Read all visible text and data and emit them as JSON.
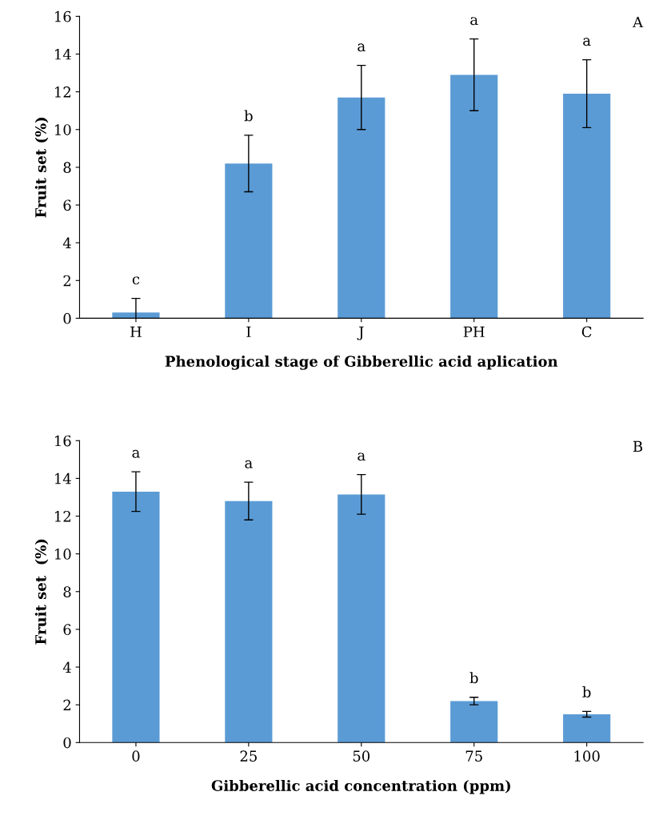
{
  "chart_data": [
    {
      "type": "bar",
      "xlabel": "Phenological stage of Gibberellic acid aplication",
      "ylabel": "Fruit set (%)",
      "categories": [
        "H",
        "I",
        "J",
        "PH",
        "C"
      ],
      "values": [
        0.3,
        8.2,
        11.7,
        12.9,
        11.9
      ],
      "errors": [
        0.75,
        1.5,
        1.7,
        1.9,
        1.8
      ],
      "color": "#5b9bd5",
      "ylim": [
        0,
        16
      ],
      "yticks": [
        0,
        2,
        4,
        6,
        8,
        10,
        12,
        14,
        16
      ],
      "grid": false,
      "annotations": [
        {
          "text": "c",
          "x": "H",
          "y": 1.05
        },
        {
          "text": "b",
          "x": "I",
          "y": 9.7
        },
        {
          "text": "a",
          "x": "J",
          "y": 13.4
        },
        {
          "text": "a",
          "x": "PH",
          "y": 14.8
        },
        {
          "text": "a",
          "x": "C",
          "y": 13.7
        },
        "A"
      ]
    },
    {
      "type": "bar",
      "xlabel": "Gibberellic acid concentration (ppm)",
      "ylabel": "Fruit set  (%)",
      "categories": [
        "0",
        "25",
        "50",
        "75",
        "100"
      ],
      "values": [
        13.3,
        12.8,
        13.15,
        2.2,
        1.5
      ],
      "errors": [
        1.05,
        1.0,
        1.05,
        0.2,
        0.15
      ],
      "color": "#5b9bd5",
      "ylim": [
        0,
        16
      ],
      "yticks": [
        0,
        2,
        4,
        6,
        8,
        10,
        12,
        14,
        16
      ],
      "grid": false,
      "annotations": [
        {
          "text": "a",
          "x": "0",
          "y": 14.35
        },
        {
          "text": "a",
          "x": "25",
          "y": 13.8
        },
        {
          "text": "a",
          "x": "50",
          "y": 14.2
        },
        {
          "text": "b",
          "x": "75",
          "y": 2.4
        },
        {
          "text": "b",
          "x": "100",
          "y": 1.65
        },
        "B"
      ]
    }
  ]
}
